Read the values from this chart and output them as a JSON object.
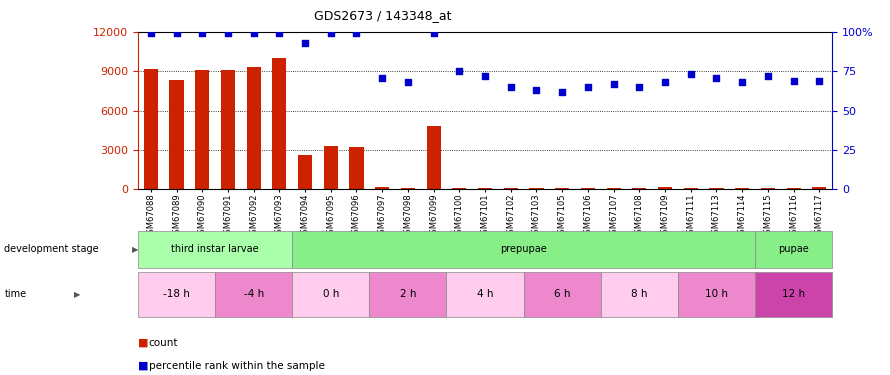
{
  "title": "GDS2673 / 143348_at",
  "samples": [
    "GSM67088",
    "GSM67089",
    "GSM67090",
    "GSM67091",
    "GSM67092",
    "GSM67093",
    "GSM67094",
    "GSM67095",
    "GSM67096",
    "GSM67097",
    "GSM67098",
    "GSM67099",
    "GSM67100",
    "GSM67101",
    "GSM67102",
    "GSM67103",
    "GSM67105",
    "GSM67106",
    "GSM67107",
    "GSM67108",
    "GSM67109",
    "GSM67111",
    "GSM67113",
    "GSM67114",
    "GSM67115",
    "GSM67116",
    "GSM67117"
  ],
  "counts": [
    9200,
    8300,
    9100,
    9100,
    9300,
    10000,
    2600,
    3300,
    3200,
    180,
    100,
    4800,
    120,
    120,
    100,
    120,
    100,
    100,
    100,
    100,
    180,
    100,
    100,
    100,
    100,
    100,
    180
  ],
  "percentile": [
    99,
    99,
    99,
    99,
    99,
    99,
    93,
    99,
    99,
    71,
    68,
    99,
    75,
    72,
    65,
    63,
    62,
    65,
    67,
    65,
    68,
    73,
    71,
    68,
    72,
    69,
    69
  ],
  "bar_color": "#cc2200",
  "dot_color": "#0000cc",
  "left_ylim": [
    0,
    12000
  ],
  "left_yticks": [
    0,
    3000,
    6000,
    9000,
    12000
  ],
  "right_ylim": [
    0,
    100
  ],
  "right_yticks": [
    0,
    25,
    50,
    75,
    100
  ],
  "right_yticklabels": [
    "0",
    "25",
    "50",
    "75",
    "100%"
  ],
  "dev_segments": [
    {
      "text": "third instar larvae",
      "start": 0,
      "end": 6,
      "color": "#aaffaa"
    },
    {
      "text": "prepupae",
      "start": 6,
      "end": 24,
      "color": "#88ee88"
    },
    {
      "text": "pupae",
      "start": 24,
      "end": 27,
      "color": "#88ee88"
    }
  ],
  "time_segments": [
    {
      "text": "-18 h",
      "start": 0,
      "end": 3,
      "color": "#ffccee"
    },
    {
      "text": "-4 h",
      "start": 3,
      "end": 6,
      "color": "#ee88cc"
    },
    {
      "text": "0 h",
      "start": 6,
      "end": 9,
      "color": "#ffccee"
    },
    {
      "text": "2 h",
      "start": 9,
      "end": 12,
      "color": "#ee88cc"
    },
    {
      "text": "4 h",
      "start": 12,
      "end": 15,
      "color": "#ffccee"
    },
    {
      "text": "6 h",
      "start": 15,
      "end": 18,
      "color": "#ee88cc"
    },
    {
      "text": "8 h",
      "start": 18,
      "end": 21,
      "color": "#ffccee"
    },
    {
      "text": "10 h",
      "start": 21,
      "end": 24,
      "color": "#ee88cc"
    },
    {
      "text": "12 h",
      "start": 24,
      "end": 27,
      "color": "#cc44aa"
    }
  ],
  "legend_count_color": "#cc2200",
  "legend_dot_color": "#0000cc"
}
